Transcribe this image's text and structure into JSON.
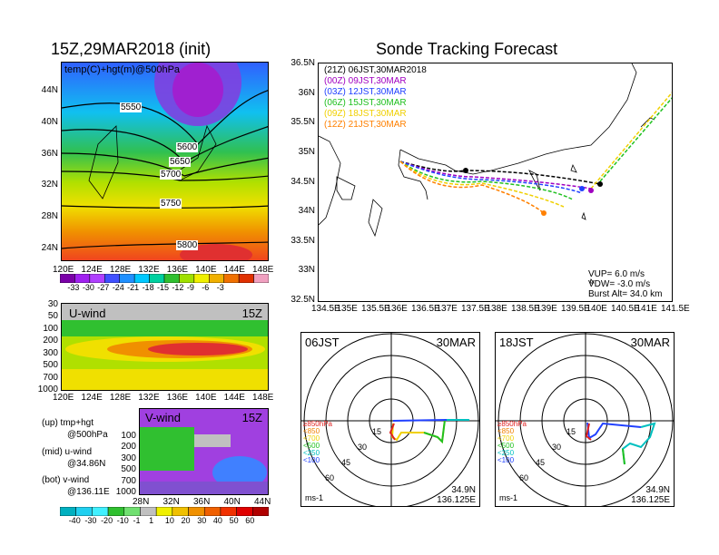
{
  "left": {
    "title": "15Z,29MAR2018 (init)",
    "map_label": "temp(C)+hgt(m)@500hPa",
    "lat_ticks": [
      "44N",
      "40N",
      "36N",
      "32N",
      "28N",
      "24N"
    ],
    "lon_ticks": [
      "120E",
      "124E",
      "128E",
      "132E",
      "136E",
      "140E",
      "144E",
      "148E"
    ],
    "contours": [
      "5550",
      "5600",
      "5650",
      "5700",
      "5750",
      "5800"
    ],
    "temp_colorbar": {
      "labels": [
        "-33",
        "-30",
        "-27",
        "-24",
        "-21",
        "-18",
        "-15",
        "-12",
        "-9",
        "-6",
        "-3"
      ],
      "colors": [
        "#7a00a8",
        "#a020f0",
        "#b040ff",
        "#4050ff",
        "#2090ff",
        "#00c8ff",
        "#00d0a0",
        "#30c030",
        "#a0e000",
        "#f0f000",
        "#f0b000",
        "#f07000",
        "#e03000",
        "#f0a0c0"
      ]
    },
    "uwind": {
      "label": "U-wind",
      "time": "15Z",
      "levels": [
        "30",
        "50",
        "100",
        "200",
        "300",
        "500",
        "700",
        "1000"
      ],
      "lon_ticks": [
        "120E",
        "124E",
        "128E",
        "132E",
        "136E",
        "140E",
        "144E",
        "148E"
      ]
    },
    "vwind": {
      "label": "V-wind",
      "time": "15Z",
      "levels": [
        "100",
        "200",
        "300",
        "500",
        "700",
        "1000"
      ],
      "lat_ticks": [
        "28N",
        "32N",
        "36N",
        "40N",
        "44N"
      ]
    },
    "notes": [
      {
        "a": "(up) tmp+hgt",
        "b": "@500hPa"
      },
      {
        "a": "(mid) u-wind",
        "b": "@34.86N"
      },
      {
        "a": "(bot) v-wind",
        "b": "@136.11E"
      }
    ],
    "wind_colorbar": {
      "labels": [
        "-40",
        "-30",
        "-20",
        "-10",
        "-1",
        "1",
        "10",
        "20",
        "30",
        "40",
        "50",
        "60"
      ],
      "colors": [
        "#00b0c0",
        "#20d0f0",
        "#40f0ff",
        "#30c030",
        "#70e070",
        "#c0c0c0",
        "#f0f000",
        "#f0c000",
        "#f09000",
        "#f06000",
        "#f03000",
        "#e00000",
        "#b00000"
      ]
    }
  },
  "right": {
    "title": "Sonde Tracking Forecast",
    "legend": [
      {
        "text": "(21Z)  06JST,30MAR2018",
        "color": "#000000"
      },
      {
        "text": "(00Z)  09JST,30MAR",
        "color": "#a000c0"
      },
      {
        "text": "(03Z)  12JST,30MAR",
        "color": "#2040ff"
      },
      {
        "text": "(06Z)  15JST,30MAR",
        "color": "#20c020"
      },
      {
        "text": "(09Z)  18JST,30MAR",
        "color": "#f0d000"
      },
      {
        "text": "(12Z)  21JST,30MAR",
        "color": "#ff8000"
      }
    ],
    "lat_ticks": [
      "36.5N",
      "36N",
      "35.5N",
      "35N",
      "34.5N",
      "34N",
      "33.5N",
      "33N",
      "32.5N"
    ],
    "lon_ticks": [
      "134.5E",
      "135E",
      "135.5E",
      "136E",
      "136.5E",
      "137E",
      "137.5E",
      "138E",
      "138.5E",
      "139E",
      "139.5E",
      "140E",
      "140.5E",
      "141E",
      "141.5E"
    ],
    "params": [
      "VUP=  6.0 m/s",
      "VDW= -3.0 m/s",
      "Burst Alt= 34.0 km"
    ],
    "hodo_left": {
      "time": "06JST",
      "date": "30MAR",
      "rings": [
        "15",
        "30",
        "45",
        "60"
      ],
      "lat": "34.9N",
      "lon": "136.125E",
      "unit": "ms-1"
    },
    "hodo_right": {
      "time": "18JST",
      "date": "30MAR",
      "rings": [
        "15",
        "30",
        "45",
        "60"
      ],
      "lat": "34.9N",
      "lon": "136.125E",
      "unit": "ms-1"
    },
    "hodo_levels": [
      {
        "text": "≥850hPa",
        "color": "#e02020"
      },
      {
        "text": "<850",
        "color": "#f08000"
      },
      {
        "text": "<700",
        "color": "#f0d000"
      },
      {
        "text": "<500",
        "color": "#20c020"
      },
      {
        "text": "<250",
        "color": "#00c0c0"
      },
      {
        "text": "<100",
        "color": "#2040ff"
      }
    ]
  }
}
